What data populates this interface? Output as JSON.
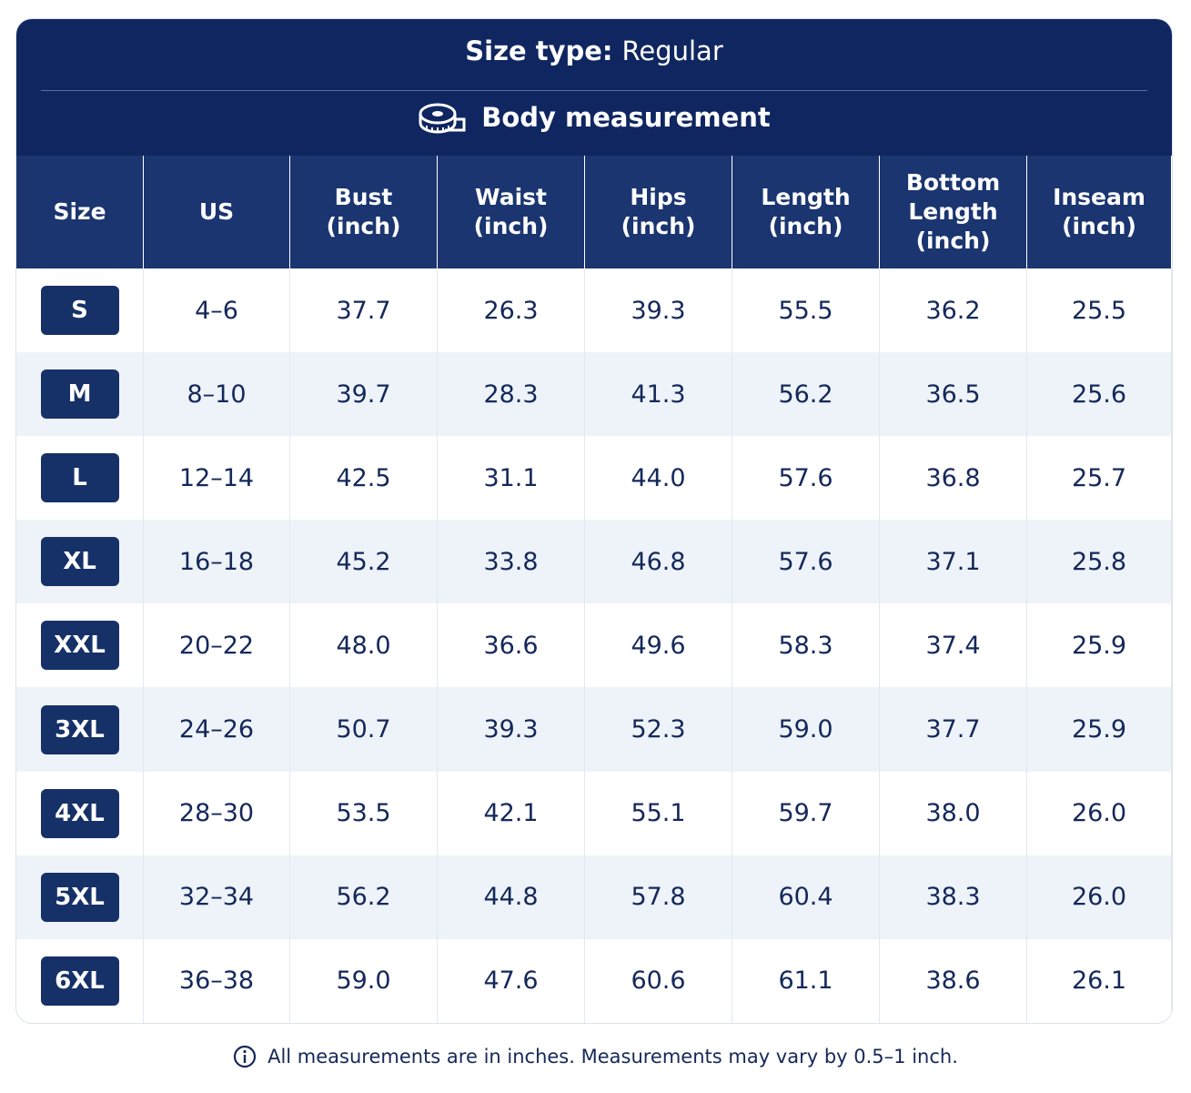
{
  "header": {
    "size_type_label": "Size type:",
    "size_type_value": "Regular",
    "section_title": "Body measurement"
  },
  "table": {
    "columns": [
      "Size",
      "US",
      "Bust\n(inch)",
      "Waist\n(inch)",
      "Hips\n(inch)",
      "Length\n(inch)",
      "Bottom\nLength\n(inch)",
      "Inseam\n(inch)"
    ],
    "rows": [
      [
        "S",
        "4–6",
        "37.7",
        "26.3",
        "39.3",
        "55.5",
        "36.2",
        "25.5"
      ],
      [
        "M",
        "8–10",
        "39.7",
        "28.3",
        "41.3",
        "56.2",
        "36.5",
        "25.6"
      ],
      [
        "L",
        "12–14",
        "42.5",
        "31.1",
        "44.0",
        "57.6",
        "36.8",
        "25.7"
      ],
      [
        "XL",
        "16–18",
        "45.2",
        "33.8",
        "46.8",
        "57.6",
        "37.1",
        "25.8"
      ],
      [
        "XXL",
        "20–22",
        "48.0",
        "36.6",
        "49.6",
        "58.3",
        "37.4",
        "25.9"
      ],
      [
        "3XL",
        "24–26",
        "50.7",
        "39.3",
        "52.3",
        "59.0",
        "37.7",
        "25.9"
      ],
      [
        "4XL",
        "28–30",
        "53.5",
        "42.1",
        "55.1",
        "59.7",
        "38.0",
        "26.0"
      ],
      [
        "5XL",
        "32–34",
        "56.2",
        "44.8",
        "57.8",
        "60.4",
        "38.3",
        "26.0"
      ],
      [
        "6XL",
        "36–38",
        "59.0",
        "47.6",
        "60.6",
        "61.1",
        "38.6",
        "26.1"
      ]
    ]
  },
  "footnote": "All measurements are in inches. Measurements may vary by 0.5–1 inch."
}
